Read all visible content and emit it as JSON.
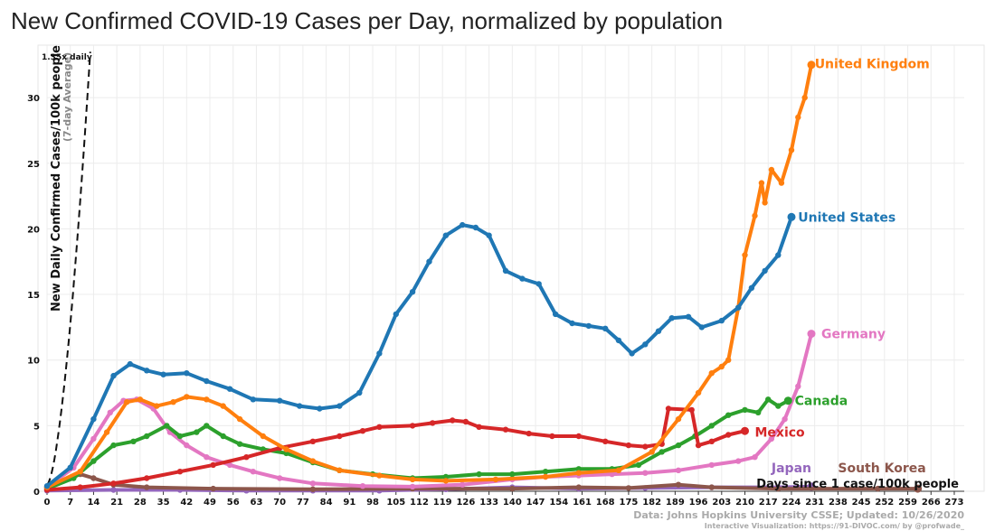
{
  "chart_data": {
    "type": "line",
    "title": "New Confirmed COVID-19 Cases per Day, normalized by population",
    "ylabel": "New Daily Confirmed Cases/100k people",
    "ylabel_sub": "(7-day Average)",
    "xlabel": "Days since 1 case/100k people",
    "xlim": [
      0,
      276
    ],
    "ylim": [
      0,
      34
    ],
    "x_ticks": [
      0,
      7,
      14,
      21,
      28,
      35,
      42,
      49,
      56,
      63,
      70,
      77,
      84,
      91,
      98,
      105,
      112,
      119,
      126,
      133,
      140,
      147,
      154,
      161,
      168,
      175,
      182,
      189,
      196,
      203,
      210,
      217,
      224,
      231,
      238,
      245,
      252,
      259,
      266,
      273
    ],
    "y_ticks": [
      0,
      5,
      10,
      15,
      20,
      25,
      30
    ],
    "reference_line": {
      "label": "1.35x daily",
      "start": [
        0,
        0.5
      ],
      "end": [
        13,
        33.5
      ],
      "style": "dashed"
    },
    "source": "Data: Johns Hopkins University CSSE; Updated: 10/26/2020",
    "credit": "Interactive Visualization: https://91-DIVOC.com/ by @profwade_",
    "series": [
      {
        "name": "United Kingdom",
        "color": "#ff7f0e",
        "points": [
          [
            0,
            0.3
          ],
          [
            10,
            1.5
          ],
          [
            18,
            4.5
          ],
          [
            24,
            6.8
          ],
          [
            28,
            7.0
          ],
          [
            33,
            6.5
          ],
          [
            38,
            6.8
          ],
          [
            42,
            7.2
          ],
          [
            48,
            7.0
          ],
          [
            53,
            6.5
          ],
          [
            58,
            5.5
          ],
          [
            65,
            4.2
          ],
          [
            72,
            3.2
          ],
          [
            80,
            2.3
          ],
          [
            88,
            1.6
          ],
          [
            100,
            1.2
          ],
          [
            110,
            0.9
          ],
          [
            120,
            0.8
          ],
          [
            135,
            0.9
          ],
          [
            150,
            1.1
          ],
          [
            160,
            1.4
          ],
          [
            172,
            1.6
          ],
          [
            182,
            3.0
          ],
          [
            190,
            5.5
          ],
          [
            196,
            7.5
          ],
          [
            200,
            9.0
          ],
          [
            203,
            9.5
          ],
          [
            205,
            10.0
          ],
          [
            208,
            14.0
          ],
          [
            210,
            18.0
          ],
          [
            213,
            21.0
          ],
          [
            215,
            23.5
          ],
          [
            216,
            22.0
          ],
          [
            218,
            24.5
          ],
          [
            221,
            23.5
          ],
          [
            224,
            26.0
          ],
          [
            226,
            28.5
          ],
          [
            228,
            30.0
          ],
          [
            230,
            32.5
          ]
        ],
        "label_at": [
          231,
          32.6
        ]
      },
      {
        "name": "United States",
        "color": "#1f77b4",
        "points": [
          [
            0,
            0.4
          ],
          [
            7,
            1.8
          ],
          [
            14,
            5.5
          ],
          [
            20,
            8.8
          ],
          [
            25,
            9.7
          ],
          [
            30,
            9.2
          ],
          [
            35,
            8.9
          ],
          [
            42,
            9.0
          ],
          [
            48,
            8.4
          ],
          [
            55,
            7.8
          ],
          [
            62,
            7.0
          ],
          [
            70,
            6.9
          ],
          [
            76,
            6.5
          ],
          [
            82,
            6.3
          ],
          [
            88,
            6.5
          ],
          [
            94,
            7.5
          ],
          [
            100,
            10.5
          ],
          [
            105,
            13.5
          ],
          [
            110,
            15.2
          ],
          [
            115,
            17.5
          ],
          [
            120,
            19.5
          ],
          [
            125,
            20.3
          ],
          [
            129,
            20.1
          ],
          [
            133,
            19.5
          ],
          [
            138,
            16.8
          ],
          [
            143,
            16.2
          ],
          [
            148,
            15.8
          ],
          [
            153,
            13.5
          ],
          [
            158,
            12.8
          ],
          [
            163,
            12.6
          ],
          [
            168,
            12.4
          ],
          [
            172,
            11.5
          ],
          [
            176,
            10.5
          ],
          [
            180,
            11.2
          ],
          [
            184,
            12.2
          ],
          [
            188,
            13.2
          ],
          [
            193,
            13.3
          ],
          [
            197,
            12.5
          ],
          [
            203,
            13.0
          ],
          [
            208,
            14.0
          ],
          [
            212,
            15.5
          ],
          [
            216,
            16.8
          ],
          [
            220,
            18.0
          ],
          [
            224,
            20.9
          ]
        ],
        "label_at": [
          226,
          20.9
        ]
      },
      {
        "name": "Germany",
        "color": "#e377c2",
        "points": [
          [
            0,
            0.3
          ],
          [
            8,
            1.8
          ],
          [
            14,
            4.0
          ],
          [
            19,
            6.0
          ],
          [
            23,
            6.9
          ],
          [
            27,
            7.0
          ],
          [
            32,
            6.3
          ],
          [
            37,
            4.5
          ],
          [
            42,
            3.5
          ],
          [
            48,
            2.6
          ],
          [
            55,
            2.0
          ],
          [
            62,
            1.5
          ],
          [
            70,
            1.0
          ],
          [
            80,
            0.6
          ],
          [
            95,
            0.4
          ],
          [
            110,
            0.35
          ],
          [
            125,
            0.5
          ],
          [
            140,
            0.9
          ],
          [
            150,
            1.1
          ],
          [
            160,
            1.2
          ],
          [
            170,
            1.3
          ],
          [
            180,
            1.4
          ],
          [
            190,
            1.6
          ],
          [
            200,
            2.0
          ],
          [
            208,
            2.3
          ],
          [
            213,
            2.6
          ],
          [
            218,
            4.0
          ],
          [
            222,
            5.5
          ],
          [
            226,
            8.0
          ],
          [
            230,
            12.0
          ]
        ],
        "label_at": [
          233,
          12.0
        ]
      },
      {
        "name": "Canada",
        "color": "#2ca02c",
        "points": [
          [
            0,
            0.2
          ],
          [
            8,
            1.0
          ],
          [
            14,
            2.3
          ],
          [
            20,
            3.5
          ],
          [
            26,
            3.8
          ],
          [
            30,
            4.2
          ],
          [
            36,
            5.0
          ],
          [
            40,
            4.2
          ],
          [
            45,
            4.5
          ],
          [
            48,
            5.0
          ],
          [
            53,
            4.2
          ],
          [
            58,
            3.6
          ],
          [
            65,
            3.2
          ],
          [
            72,
            2.9
          ],
          [
            80,
            2.2
          ],
          [
            88,
            1.6
          ],
          [
            98,
            1.3
          ],
          [
            110,
            1.0
          ],
          [
            120,
            1.1
          ],
          [
            130,
            1.3
          ],
          [
            140,
            1.3
          ],
          [
            150,
            1.5
          ],
          [
            160,
            1.7
          ],
          [
            170,
            1.7
          ],
          [
            178,
            2.0
          ],
          [
            185,
            3.0
          ],
          [
            190,
            3.5
          ],
          [
            195,
            4.2
          ],
          [
            200,
            5.0
          ],
          [
            205,
            5.8
          ],
          [
            210,
            6.2
          ],
          [
            214,
            6.0
          ],
          [
            217,
            7.0
          ],
          [
            220,
            6.5
          ],
          [
            223,
            6.9
          ]
        ],
        "label_at": [
          225,
          6.9
        ]
      },
      {
        "name": "Mexico",
        "color": "#d62728",
        "points": [
          [
            0,
            0.1
          ],
          [
            10,
            0.3
          ],
          [
            20,
            0.6
          ],
          [
            30,
            1.0
          ],
          [
            40,
            1.5
          ],
          [
            50,
            2.0
          ],
          [
            60,
            2.6
          ],
          [
            70,
            3.3
          ],
          [
            80,
            3.8
          ],
          [
            88,
            4.2
          ],
          [
            95,
            4.6
          ],
          [
            100,
            4.9
          ],
          [
            110,
            5.0
          ],
          [
            116,
            5.2
          ],
          [
            122,
            5.4
          ],
          [
            126,
            5.3
          ],
          [
            130,
            4.9
          ],
          [
            138,
            4.7
          ],
          [
            145,
            4.4
          ],
          [
            152,
            4.2
          ],
          [
            160,
            4.2
          ],
          [
            168,
            3.8
          ],
          [
            175,
            3.5
          ],
          [
            180,
            3.4
          ],
          [
            185,
            3.6
          ],
          [
            187,
            6.3
          ],
          [
            194,
            6.2
          ],
          [
            196,
            3.5
          ],
          [
            200,
            3.8
          ],
          [
            205,
            4.3
          ],
          [
            210,
            4.6
          ]
        ],
        "label_at": [
          213,
          4.5
        ]
      },
      {
        "name": "Japan",
        "color": "#9467bd",
        "points": [
          [
            0,
            0.05
          ],
          [
            20,
            0.1
          ],
          [
            40,
            0.1
          ],
          [
            60,
            0.05
          ],
          [
            80,
            0.05
          ],
          [
            100,
            0.05
          ],
          [
            120,
            0.15
          ],
          [
            140,
            0.3
          ],
          [
            160,
            0.2
          ],
          [
            180,
            0.25
          ],
          [
            200,
            0.3
          ],
          [
            220,
            0.3
          ],
          [
            230,
            0.35
          ]
        ],
        "label_at": [
          218,
          1.8
        ]
      },
      {
        "name": "South Korea",
        "color": "#8c564b",
        "points": [
          [
            0,
            0.3
          ],
          [
            5,
            0.8
          ],
          [
            10,
            1.3
          ],
          [
            14,
            1.0
          ],
          [
            20,
            0.5
          ],
          [
            30,
            0.3
          ],
          [
            50,
            0.2
          ],
          [
            80,
            0.15
          ],
          [
            110,
            0.2
          ],
          [
            140,
            0.2
          ],
          [
            160,
            0.3
          ],
          [
            175,
            0.25
          ],
          [
            190,
            0.5
          ],
          [
            200,
            0.3
          ],
          [
            220,
            0.2
          ],
          [
            250,
            0.2
          ],
          [
            262,
            0.2
          ]
        ],
        "label_at": [
          238,
          1.8
        ]
      }
    ]
  }
}
